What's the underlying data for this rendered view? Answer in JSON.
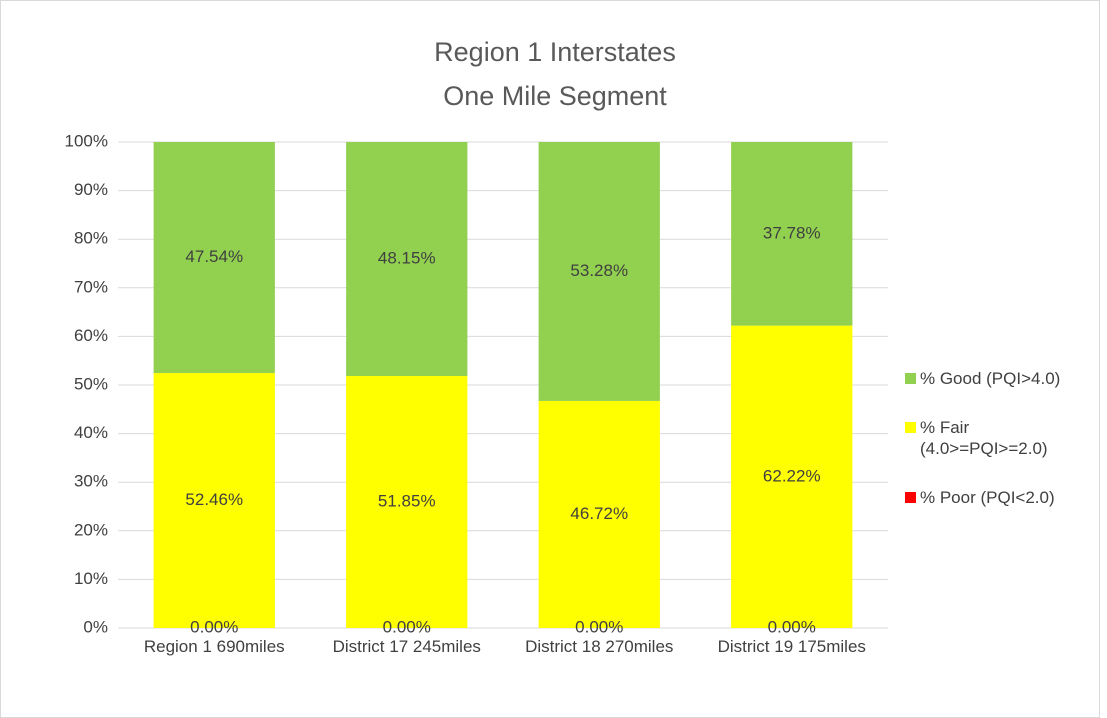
{
  "chart_data": {
    "type": "stacked_bar",
    "title": "Region 1 Interstates",
    "subtitle": "One Mile Segment",
    "categories": [
      "Region 1 690miles",
      "District 17 245miles",
      "District 18 270miles",
      "District 19 175miles"
    ],
    "series": [
      {
        "name": "% Poor (PQI<2.0)",
        "color": "#ff0000",
        "values": [
          0,
          0,
          0,
          0
        ],
        "value_labels": [
          "0.00%",
          "0.00%",
          "0.00%",
          "0.00%"
        ]
      },
      {
        "name": "% Fair (4.0>=PQI>=2.0)",
        "color": "#ffff00",
        "values": [
          52.46,
          51.85,
          46.72,
          62.22
        ],
        "value_labels": [
          "52.46%",
          "51.85%",
          "46.72%",
          "62.22%"
        ]
      },
      {
        "name": "% Good (PQI>4.0)",
        "color": "#92d050",
        "values": [
          47.54,
          48.15,
          53.28,
          37.78
        ],
        "value_labels": [
          "47.54%",
          "48.15%",
          "53.28%",
          "37.78%"
        ]
      }
    ],
    "ylim": [
      0,
      100
    ],
    "yticks": [
      {
        "value": 0,
        "label": "0%"
      },
      {
        "value": 10,
        "label": "10%"
      },
      {
        "value": 20,
        "label": "20%"
      },
      {
        "value": 30,
        "label": "30%"
      },
      {
        "value": 40,
        "label": "40%"
      },
      {
        "value": 50,
        "label": "50%"
      },
      {
        "value": 60,
        "label": "60%"
      },
      {
        "value": 70,
        "label": "70%"
      },
      {
        "value": 80,
        "label": "80%"
      },
      {
        "value": 90,
        "label": "90%"
      },
      {
        "value": 100,
        "label": "100%"
      }
    ],
    "grid": true,
    "legend": "right"
  }
}
